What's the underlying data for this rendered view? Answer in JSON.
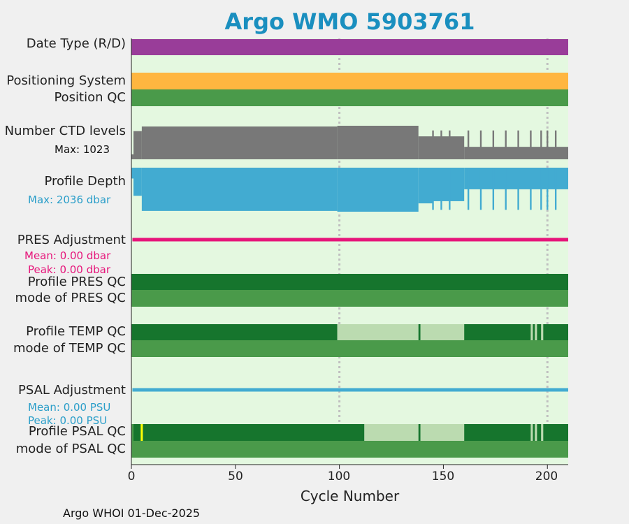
{
  "chart_data": {
    "type": "timeline",
    "title": "Argo WMO 5903761",
    "xlabel": "Cycle Number",
    "xlim": [
      0,
      210
    ],
    "xticks": [
      0,
      50,
      100,
      150,
      200
    ],
    "footer": "Argo WHOI 01-Dec-2025",
    "colors": {
      "background": "#e4f8e0",
      "date_type": "#993d99",
      "positioning": "#ffb640",
      "qc_good": "#4a9a4a",
      "qc_dark": "#16752d",
      "qc_light": "#bbdbb0",
      "ctd_levels": "#787878",
      "profile_depth": "#42abd1",
      "pres_adjustment": "#e6157a",
      "psal_adjustment": "#42abd1",
      "flag_yellow": "#ffff00",
      "gridline": "#c0c0c0"
    },
    "rows": {
      "date_type": "Date Type (R/D)",
      "positioning": "Positioning System",
      "position_qc": "Position QC",
      "ctd_levels": "Number CTD levels",
      "ctd_max": "Max: 1023",
      "profile_depth": "Profile Depth",
      "depth_max": "Max: 2036 dbar",
      "pres_adj": "PRES Adjustment",
      "pres_mean": "Mean: 0.00 dbar",
      "pres_peak": "Peak: 0.00 dbar",
      "pres_qc": "Profile PRES QC",
      "pres_mode": "mode of PRES QC",
      "temp_qc": "Profile TEMP QC",
      "temp_mode": "mode of TEMP QC",
      "psal_adj": "PSAL Adjustment",
      "psal_mean": "Mean: 0.00 PSU",
      "psal_peak": "Peak: 0.00 PSU",
      "psal_qc": "Profile PSAL QC",
      "psal_mode": "mode of PSAL QC"
    },
    "temp_qc_segments": [
      {
        "from": 0,
        "to": 99,
        "level": "dark"
      },
      {
        "from": 99,
        "to": 138,
        "level": "light"
      },
      {
        "from": 138,
        "to": 139,
        "level": "dark"
      },
      {
        "from": 139,
        "to": 160,
        "level": "light"
      },
      {
        "from": 160,
        "to": 192,
        "level": "dark"
      },
      {
        "from": 192,
        "to": 193,
        "level": "light"
      },
      {
        "from": 193,
        "to": 194,
        "level": "dark"
      },
      {
        "from": 194,
        "to": 195,
        "level": "light"
      },
      {
        "from": 195,
        "to": 197,
        "level": "dark"
      },
      {
        "from": 197,
        "to": 198,
        "level": "light"
      },
      {
        "from": 198,
        "to": 210,
        "level": "dark"
      }
    ],
    "psal_qc_segments": [
      {
        "from": 0,
        "to": 1,
        "level": "good"
      },
      {
        "from": 1,
        "to": 4.5,
        "level": "dark"
      },
      {
        "from": 4.5,
        "to": 5.5,
        "level": "yellow"
      },
      {
        "from": 5.5,
        "to": 112,
        "level": "dark"
      },
      {
        "from": 112,
        "to": 138,
        "level": "light"
      },
      {
        "from": 138,
        "to": 139,
        "level": "dark"
      },
      {
        "from": 139,
        "to": 160,
        "level": "light"
      },
      {
        "from": 160,
        "to": 192,
        "level": "dark"
      },
      {
        "from": 192,
        "to": 193,
        "level": "light"
      },
      {
        "from": 193,
        "to": 194,
        "level": "dark"
      },
      {
        "from": 194,
        "to": 195,
        "level": "light"
      },
      {
        "from": 195,
        "to": 197,
        "level": "dark"
      },
      {
        "from": 197,
        "to": 198,
        "level": "light"
      },
      {
        "from": 198,
        "to": 210,
        "level": "dark"
      }
    ],
    "ctd_levels_series": [
      {
        "from": 0,
        "to": 1,
        "value": 150
      },
      {
        "from": 1,
        "to": 5,
        "value": 860
      },
      {
        "from": 5,
        "to": 99,
        "value": 1000
      },
      {
        "from": 99,
        "to": 138,
        "value": 1023
      },
      {
        "from": 138,
        "to": 160,
        "value": 700
      },
      {
        "from": 160,
        "to": 210,
        "value": 380
      }
    ],
    "ctd_spikes": [
      145,
      149,
      153,
      162,
      168,
      174,
      180,
      186,
      192,
      197,
      200,
      204
    ],
    "depth_series": [
      {
        "from": 0,
        "to": 1,
        "value": 500
      },
      {
        "from": 1,
        "to": 5,
        "value": 1300
      },
      {
        "from": 5,
        "to": 99,
        "value": 2000
      },
      {
        "from": 99,
        "to": 138,
        "value": 2036
      },
      {
        "from": 138,
        "to": 145,
        "value": 1650
      },
      {
        "from": 145,
        "to": 160,
        "value": 1550
      },
      {
        "from": 160,
        "to": 210,
        "value": 1000
      }
    ],
    "depth_spikes": [
      145,
      149,
      153,
      162,
      168,
      174,
      180,
      186,
      192,
      197,
      200,
      204
    ]
  }
}
